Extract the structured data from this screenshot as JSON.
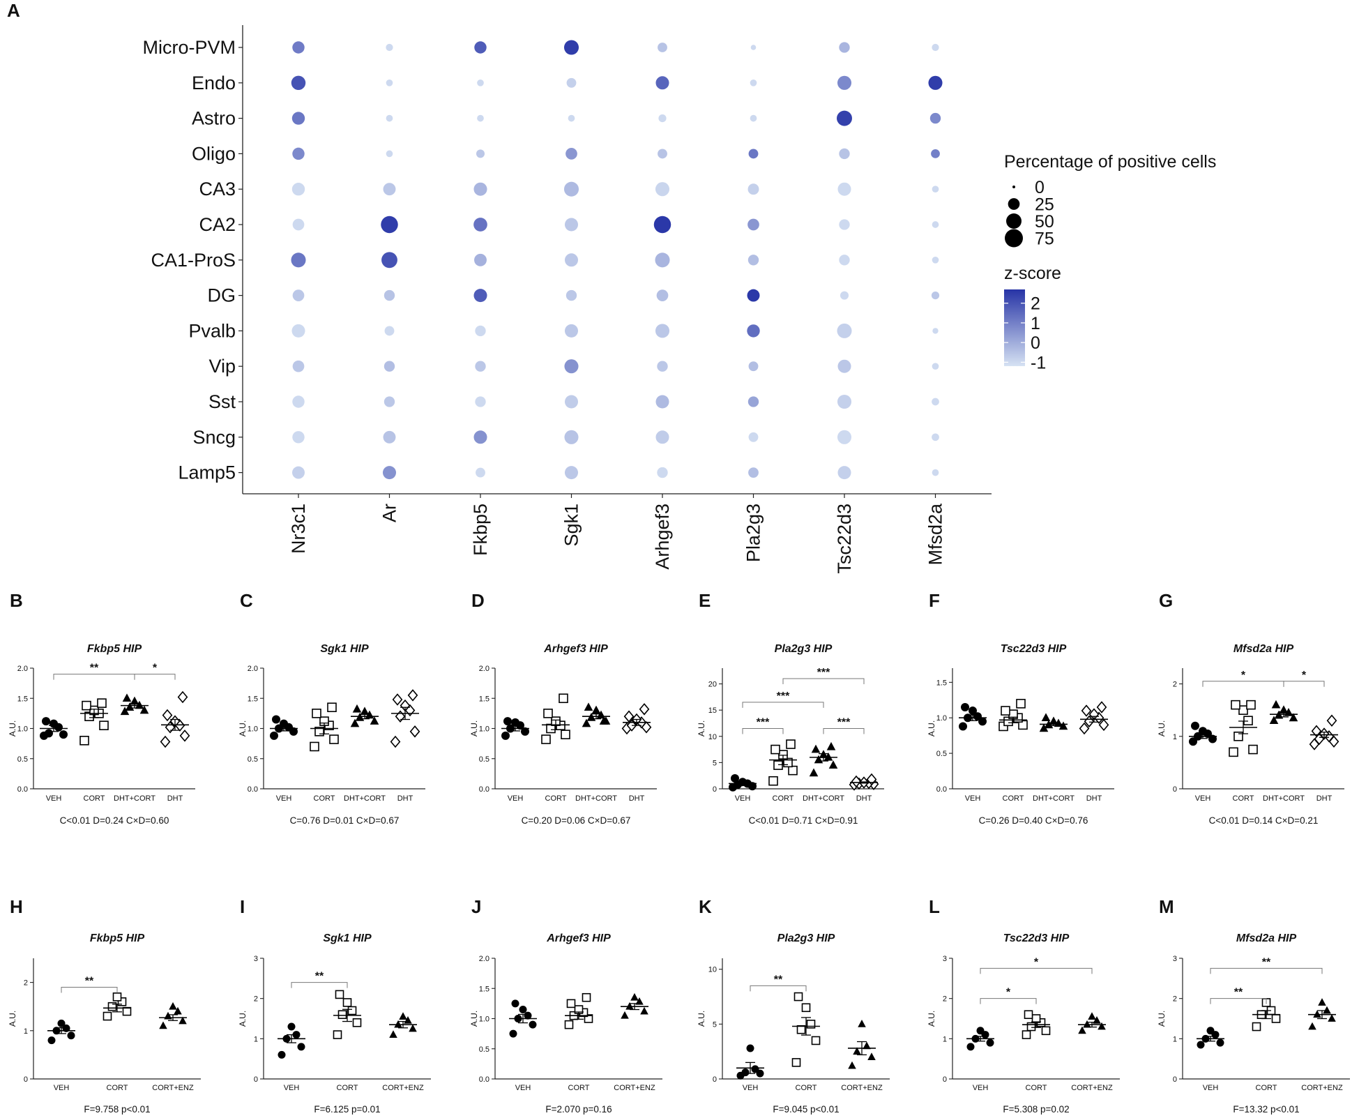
{
  "dot_plot": {
    "panel_label": "A",
    "rows": [
      "Micro-PVM",
      "Endo",
      "Astro",
      "Oligo",
      "CA3",
      "CA2",
      "CA1-ProS",
      "DG",
      "Pvalb",
      "Vip",
      "Sst",
      "Sncg",
      "Lamp5"
    ],
    "cols": [
      "Nr3c1",
      "Ar",
      "Fkbp5",
      "Sgk1",
      "Arhgef3",
      "Pla2g3",
      "Tsc22d3",
      "Mfsd2a"
    ],
    "legend": {
      "size_title": "Percentage of positive cells",
      "size_values": [
        0,
        25,
        50,
        75
      ],
      "size_labels": [
        "0",
        "25",
        "50",
        "75"
      ],
      "color_title": "z-score",
      "color_ticks": [
        2,
        1,
        0,
        -1
      ],
      "color_tick_labels": [
        "2",
        "1",
        "0",
        "-1"
      ],
      "color_low": "#d6e2f3",
      "color_high": "#2734a6"
    }
  },
  "chart_data": {
    "type": "scatter",
    "dot_pct": [
      [
        28,
        6,
        28,
        45,
        15,
        2,
        20,
        6
      ],
      [
        42,
        5,
        5,
        15,
        35,
        5,
        40,
        40
      ],
      [
        32,
        5,
        5,
        5,
        8,
        5,
        50,
        20
      ],
      [
        28,
        5,
        10,
        25,
        15,
        15,
        20,
        12
      ],
      [
        32,
        30,
        35,
        45,
        40,
        22,
        35,
        5
      ],
      [
        25,
        65,
        38,
        35,
        65,
        25,
        20,
        5
      ],
      [
        45,
        55,
        30,
        35,
        45,
        20,
        20,
        5
      ],
      [
        25,
        20,
        35,
        20,
        25,
        30,
        10,
        8
      ],
      [
        35,
        15,
        20,
        35,
        40,
        32,
        45,
        3
      ],
      [
        25,
        20,
        20,
        40,
        20,
        15,
        35,
        5
      ],
      [
        28,
        20,
        20,
        35,
        35,
        20,
        40,
        7
      ],
      [
        28,
        30,
        35,
        40,
        35,
        15,
        40,
        7
      ],
      [
        30,
        35,
        15,
        35,
        20,
        18,
        35,
        5
      ]
    ],
    "dot_z": [
      [
        1.1,
        -1,
        1.8,
        2.5,
        -0.5,
        -1,
        -0.2,
        -1
      ],
      [
        2,
        -1,
        -1,
        -0.8,
        1.6,
        -1,
        0.8,
        2.5
      ],
      [
        1.2,
        -1,
        -1,
        -1,
        -1,
        -1,
        2.4,
        0.8
      ],
      [
        0.8,
        -1,
        -0.6,
        0.5,
        -0.5,
        1.2,
        -0.5,
        1
      ],
      [
        -1,
        -0.6,
        -0.2,
        -0.3,
        -0.9,
        -0.8,
        -1,
        -1
      ],
      [
        -1,
        2.5,
        1.3,
        -0.6,
        2.6,
        0.5,
        -1,
        -1
      ],
      [
        1.2,
        2,
        -0.1,
        -0.6,
        -0.2,
        -0.4,
        -1,
        -1
      ],
      [
        -0.6,
        -0.5,
        1.8,
        -0.6,
        -0.4,
        2.6,
        -1,
        -0.6
      ],
      [
        -1,
        -1,
        -1,
        -0.6,
        -0.6,
        1.4,
        -0.8,
        -1
      ],
      [
        -0.6,
        -0.4,
        -0.6,
        0.6,
        -0.6,
        -0.4,
        -0.6,
        -1
      ],
      [
        -1,
        -0.6,
        -1,
        -0.7,
        -0.3,
        0.2,
        -0.8,
        -1
      ],
      [
        -1,
        -0.5,
        0.6,
        -0.5,
        -0.7,
        -1,
        -1,
        -1
      ],
      [
        -0.8,
        0.6,
        -1,
        -0.6,
        -1,
        -0.4,
        -0.8,
        -1
      ]
    ],
    "ylabel": "A.U.",
    "legend_groups": [
      {
        "name": "VEH",
        "marker": "filled circle"
      },
      {
        "name": "CORT",
        "marker": "open square"
      },
      {
        "name": "DHT+CORT",
        "marker": "filled triangle"
      },
      {
        "name": "DHT",
        "marker": "open diamond"
      },
      {
        "name": "CORT+ENZ",
        "marker": "filled triangle"
      }
    ],
    "scatter_panels": [
      {
        "label": "B",
        "title": "Fkbp5 HIP",
        "ylim": [
          0,
          2
        ],
        "yticks": [
          0,
          0.5,
          1,
          1.5,
          2
        ],
        "ytick_labels": [
          "0.0",
          "0.5",
          "1.0",
          "1.5",
          "2.0"
        ],
        "groups": [
          "VEH",
          "CORT",
          "DHT+CORT",
          "DHT"
        ],
        "points": [
          [
            0.88,
            0.9,
            0.92,
            1.02,
            1.08,
            1.12
          ],
          [
            0.8,
            1.05,
            1.2,
            1.25,
            1.3,
            1.38,
            1.42
          ],
          [
            1.28,
            1.3,
            1.35,
            1.38,
            1.45,
            1.5
          ],
          [
            0.78,
            0.88,
            1.02,
            1.05,
            1.12,
            1.22,
            1.52
          ]
        ],
        "means": [
          1.0,
          1.25,
          1.38,
          1.06
        ],
        "sems": [
          0.05,
          0.07,
          0.04,
          0.09
        ],
        "brackets": [
          {
            "a": 0,
            "b": 2,
            "y": 1.9,
            "text": "**"
          },
          {
            "a": 2,
            "b": 3,
            "y": 1.9,
            "text": "*"
          }
        ],
        "stat": "C<0.01 D=0.24 C×D=0.60"
      },
      {
        "label": "C",
        "title": "Sgk1 HIP",
        "ylim": [
          0,
          2
        ],
        "yticks": [
          0,
          0.5,
          1,
          1.5,
          2
        ],
        "ytick_labels": [
          "0.0",
          "0.5",
          "1.0",
          "1.5",
          "2.0"
        ],
        "groups": [
          "VEH",
          "CORT",
          "DHT+CORT",
          "DHT"
        ],
        "points": [
          [
            0.88,
            0.95,
            1.0,
            1.02,
            1.08,
            1.15
          ],
          [
            0.7,
            0.82,
            0.95,
            1.05,
            1.12,
            1.25,
            1.35
          ],
          [
            1.08,
            1.12,
            1.18,
            1.22,
            1.28,
            1.32
          ],
          [
            0.78,
            0.95,
            1.2,
            1.3,
            1.38,
            1.48,
            1.55
          ]
        ],
        "means": [
          1.0,
          1.0,
          1.2,
          1.25
        ],
        "sems": [
          0.04,
          0.09,
          0.04,
          0.1
        ],
        "brackets": [],
        "stat": "C=0.76 D=0.01 C×D=0.67"
      },
      {
        "label": "D",
        "title": "Arhgef3 HIP",
        "ylim": [
          0,
          2
        ],
        "yticks": [
          0,
          0.5,
          1,
          1.5,
          2
        ],
        "ytick_labels": [
          "0.0",
          "0.5",
          "1.0",
          "1.5",
          "2.0"
        ],
        "groups": [
          "VEH",
          "CORT",
          "DHT+CORT",
          "DHT"
        ],
        "points": [
          [
            0.88,
            0.95,
            1.0,
            1.05,
            1.1,
            1.12
          ],
          [
            0.82,
            0.9,
            1.0,
            1.05,
            1.12,
            1.25,
            1.5
          ],
          [
            1.08,
            1.12,
            1.18,
            1.22,
            1.3,
            1.35,
            1.12
          ],
          [
            1.0,
            1.02,
            1.05,
            1.1,
            1.15,
            1.2,
            1.32
          ]
        ],
        "means": [
          1.0,
          1.06,
          1.2,
          1.1
        ],
        "sems": [
          0.04,
          0.08,
          0.04,
          0.05
        ],
        "brackets": [],
        "stat": "C=0.20 D=0.06 C×D=0.67"
      },
      {
        "label": "E",
        "title": "Pla2g3 HIP",
        "ylim": [
          0,
          23
        ],
        "yticks": [
          0,
          5,
          10,
          15,
          20
        ],
        "ytick_labels": [
          "0",
          "5",
          "10",
          "15",
          "20"
        ],
        "groups": [
          "VEH",
          "CORT",
          "DHT+CORT",
          "DHT"
        ],
        "points": [
          [
            0.3,
            0.5,
            0.8,
            1.0,
            1.3,
            2.0
          ],
          [
            1.5,
            3.5,
            4.5,
            5.0,
            6.5,
            7.5,
            8.5
          ],
          [
            3.0,
            4.5,
            5.5,
            6.0,
            6.5,
            7.5,
            8.0
          ],
          [
            0.8,
            0.9,
            1.0,
            1.1,
            1.2,
            1.4,
            1.8
          ]
        ],
        "means": [
          1.0,
          5.5,
          6.0,
          1.2
        ],
        "sems": [
          0.3,
          0.9,
          0.7,
          0.12
        ],
        "brackets": [
          {
            "a": 0,
            "b": 1,
            "y": 11.5,
            "text": "***"
          },
          {
            "a": 0,
            "b": 2,
            "y": 16.5,
            "text": "***"
          },
          {
            "a": 2,
            "b": 3,
            "y": 11.5,
            "text": "***"
          },
          {
            "a": 1,
            "b": 3,
            "y": 21,
            "text": "***"
          }
        ],
        "stat": "C<0.01 D=0.71 C×D=0.91"
      },
      {
        "label": "F",
        "title": "Tsc22d3 HIP",
        "ylim": [
          0,
          1.7
        ],
        "yticks": [
          0,
          0.5,
          1,
          1.5
        ],
        "ytick_labels": [
          "0.0",
          "0.5",
          "1.0",
          "1.5"
        ],
        "groups": [
          "VEH",
          "CORT",
          "DHT+CORT",
          "DHT"
        ],
        "points": [
          [
            0.88,
            0.95,
            1.0,
            1.02,
            1.1,
            1.15
          ],
          [
            0.88,
            0.9,
            0.95,
            1.0,
            1.05,
            1.1,
            1.2
          ],
          [
            0.85,
            0.88,
            0.9,
            0.92,
            0.95,
            1.0
          ],
          [
            0.85,
            0.9,
            0.95,
            1.0,
            1.05,
            1.1,
            1.15
          ]
        ],
        "means": [
          1.0,
          0.97,
          0.91,
          0.98
        ],
        "sems": [
          0.04,
          0.04,
          0.02,
          0.04
        ],
        "brackets": [],
        "stat": "C=0.26 D=0.40 C×D=0.76"
      },
      {
        "label": "G",
        "title": "Mfsd2a HIP",
        "ylim": [
          0,
          2.3
        ],
        "yticks": [
          0,
          1,
          2
        ],
        "ytick_labels": [
          "0",
          "1",
          "2"
        ],
        "groups": [
          "VEH",
          "CORT",
          "DHT+CORT",
          "DHT"
        ],
        "points": [
          [
            0.9,
            0.95,
            1.0,
            1.05,
            1.1,
            1.2
          ],
          [
            0.7,
            0.75,
            1.0,
            1.3,
            1.5,
            1.6,
            1.6
          ],
          [
            1.3,
            1.35,
            1.4,
            1.45,
            1.5,
            1.6
          ],
          [
            0.85,
            0.9,
            0.95,
            1.0,
            1.05,
            1.1,
            1.3
          ]
        ],
        "means": [
          1.0,
          1.17,
          1.42,
          1.03
        ],
        "sems": [
          0.04,
          0.12,
          0.05,
          0.05
        ],
        "brackets": [
          {
            "a": 0,
            "b": 2,
            "y": 2.05,
            "text": "*"
          },
          {
            "a": 2,
            "b": 3,
            "y": 2.05,
            "text": "*"
          }
        ],
        "stat": "C<0.01 D=0.14 C×D=0.21"
      },
      {
        "label": "H",
        "title": "Fkbp5 HIP",
        "ylim": [
          0,
          2.5
        ],
        "yticks": [
          0,
          1,
          2
        ],
        "ytick_labels": [
          "0",
          "1",
          "2"
        ],
        "groups": [
          "VEH",
          "CORT",
          "CORT+ENZ"
        ],
        "points": [
          [
            0.8,
            0.9,
            1.0,
            1.05,
            1.15
          ],
          [
            1.3,
            1.4,
            1.5,
            1.6,
            1.7
          ],
          [
            1.1,
            1.2,
            1.3,
            1.4,
            1.5
          ]
        ],
        "means": [
          1.0,
          1.47,
          1.27
        ],
        "sems": [
          0.06,
          0.08,
          0.06
        ],
        "brackets": [
          {
            "a": 0,
            "b": 1,
            "y": 1.9,
            "text": "**"
          }
        ],
        "stat": "F=9.758 p<0.01"
      },
      {
        "label": "I",
        "title": "Sgk1 HIP",
        "ylim": [
          0,
          3
        ],
        "yticks": [
          0,
          1,
          2,
          3
        ],
        "ytick_labels": [
          "0",
          "1",
          "2",
          "3"
        ],
        "groups": [
          "VEH",
          "CORT",
          "CORT+ENZ"
        ],
        "points": [
          [
            0.6,
            0.8,
            1.0,
            1.1,
            1.3
          ],
          [
            1.1,
            1.4,
            1.6,
            1.7,
            1.9,
            2.1
          ],
          [
            1.1,
            1.25,
            1.35,
            1.45,
            1.55
          ]
        ],
        "means": [
          1.0,
          1.58,
          1.35
        ],
        "sems": [
          0.1,
          0.15,
          0.08
        ],
        "brackets": [
          {
            "a": 0,
            "b": 1,
            "y": 2.4,
            "text": "**"
          }
        ],
        "stat": "F=6.125 p=0.01"
      },
      {
        "label": "J",
        "title": "Arhgef3 HIP",
        "ylim": [
          0,
          2
        ],
        "yticks": [
          0,
          0.5,
          1,
          1.5,
          2
        ],
        "ytick_labels": [
          "0.0",
          "0.5",
          "1.0",
          "1.5",
          "2.0"
        ],
        "groups": [
          "VEH",
          "CORT",
          "CORT+ENZ"
        ],
        "points": [
          [
            0.75,
            0.9,
            1.0,
            1.05,
            1.15,
            1.25
          ],
          [
            0.9,
            1.0,
            1.05,
            1.1,
            1.15,
            1.25,
            1.35
          ],
          [
            1.05,
            1.12,
            1.2,
            1.28,
            1.35
          ]
        ],
        "means": [
          1.0,
          1.05,
          1.2
        ],
        "sems": [
          0.07,
          0.06,
          0.05
        ],
        "brackets": [],
        "stat": "F=2.070 p=0.16"
      },
      {
        "label": "K",
        "title": "Pla2g3 HIP",
        "ylim": [
          0,
          11
        ],
        "yticks": [
          0,
          5,
          10
        ],
        "ytick_labels": [
          "0",
          "5",
          "10"
        ],
        "groups": [
          "VEH",
          "CORT",
          "CORT+ENZ"
        ],
        "points": [
          [
            0.3,
            0.5,
            0.6,
            0.9,
            2.8
          ],
          [
            1.5,
            3.5,
            4.5,
            5.0,
            6.5,
            7.5
          ],
          [
            1.2,
            2.0,
            2.5,
            3.0,
            5.0
          ]
        ],
        "means": [
          1.0,
          4.8,
          2.8
        ],
        "sems": [
          0.5,
          0.8,
          0.6
        ],
        "brackets": [
          {
            "a": 0,
            "b": 1,
            "y": 8.5,
            "text": "**"
          }
        ],
        "stat": "F=9.045 p<0.01"
      },
      {
        "label": "L",
        "title": "Tsc22d3 HIP",
        "ylim": [
          0,
          3
        ],
        "yticks": [
          0,
          1,
          2,
          3
        ],
        "ytick_labels": [
          "0",
          "1",
          "2",
          "3"
        ],
        "groups": [
          "VEH",
          "CORT",
          "CORT+ENZ"
        ],
        "points": [
          [
            0.8,
            0.9,
            1.0,
            1.1,
            1.2
          ],
          [
            1.1,
            1.2,
            1.3,
            1.4,
            1.5,
            1.6
          ],
          [
            1.2,
            1.3,
            1.35,
            1.45,
            1.55
          ]
        ],
        "means": [
          1.0,
          1.35,
          1.35
        ],
        "sems": [
          0.06,
          0.07,
          0.06
        ],
        "brackets": [
          {
            "a": 0,
            "b": 1,
            "y": 2.0,
            "text": "*"
          },
          {
            "a": 0,
            "b": 2,
            "y": 2.75,
            "text": "*"
          }
        ],
        "stat": "F=5.308 p=0.02"
      },
      {
        "label": "M",
        "title": "Mfsd2a HIP",
        "ylim": [
          0,
          3
        ],
        "yticks": [
          0,
          1,
          2,
          3
        ],
        "ytick_labels": [
          "0",
          "1",
          "2",
          "3"
        ],
        "groups": [
          "VEH",
          "CORT",
          "CORT+ENZ"
        ],
        "points": [
          [
            0.85,
            0.9,
            1.0,
            1.1,
            1.2
          ],
          [
            1.3,
            1.5,
            1.6,
            1.7,
            1.9
          ],
          [
            1.3,
            1.5,
            1.6,
            1.7,
            1.9
          ]
        ],
        "means": [
          1.0,
          1.6,
          1.6
        ],
        "sems": [
          0.06,
          0.1,
          0.1
        ],
        "brackets": [
          {
            "a": 0,
            "b": 1,
            "y": 2.0,
            "text": "**"
          },
          {
            "a": 0,
            "b": 2,
            "y": 2.75,
            "text": "**"
          }
        ],
        "stat": "F=13.32 p<0.01"
      }
    ]
  }
}
